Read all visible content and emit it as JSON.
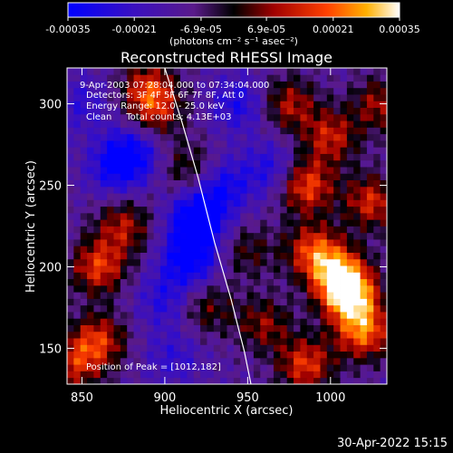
{
  "colorbar": {
    "tick_labels": [
      "-0.00035",
      "-0.00021",
      "-6.9e-05",
      "6.9e-05",
      "0.00021",
      "0.00035"
    ],
    "tick_values": [
      -0.00035,
      -0.00021,
      -6.9e-05,
      6.9e-05,
      0.00021,
      0.00035
    ],
    "range": [
      -0.00035,
      0.00035
    ],
    "unit_label": "(photons cm⁻² s⁻¹ asec⁻²)",
    "colors": [
      "#0000ff",
      "#5a1aa8",
      "#000000",
      "#b01010",
      "#ff4000",
      "#ffc000",
      "#ffffff"
    ]
  },
  "chart_data": {
    "type": "heatmap",
    "title": "Reconstructed RHESSI Image",
    "xlabel": "Heliocentric X (arcsec)",
    "ylabel": "Heliocentric Y (arcsec)",
    "xlim": [
      841,
      1034
    ],
    "ylim": [
      128,
      322
    ],
    "x_ticks": [
      850,
      900,
      950,
      1000
    ],
    "y_ticks": [
      150,
      200,
      250,
      300
    ],
    "grid": false,
    "annotations": [
      "9-Apr-2003 07:28:04.000 to 07:34:04.000",
      "Detectors: 3F 4F 5F 6F 7F 8F, Att 0",
      "Energy Range: 12.0 - 25.0 keV",
      "Clean     Total counts: 4.13E+03"
    ],
    "peak_label": "Position of Peak = [1012,182]",
    "peak": [
      1012,
      182
    ],
    "limb_curve": [
      [
        900,
        322
      ],
      [
        910,
        290
      ],
      [
        920,
        255
      ],
      [
        930,
        215
      ],
      [
        940,
        180
      ],
      [
        948,
        148
      ],
      [
        952,
        128
      ]
    ],
    "hotspots": [
      {
        "x": 1012,
        "y": 182,
        "v": 0.00035
      },
      {
        "x": 1005,
        "y": 195,
        "v": 0.0003
      },
      {
        "x": 990,
        "y": 210,
        "v": 0.00025
      },
      {
        "x": 1020,
        "y": 160,
        "v": 0.00028
      },
      {
        "x": 985,
        "y": 250,
        "v": 0.00027
      },
      {
        "x": 1000,
        "y": 280,
        "v": 0.0002
      },
      {
        "x": 1025,
        "y": 240,
        "v": 0.00022
      },
      {
        "x": 975,
        "y": 300,
        "v": 0.00018
      },
      {
        "x": 860,
        "y": 200,
        "v": 0.00024
      },
      {
        "x": 875,
        "y": 225,
        "v": 0.00018
      },
      {
        "x": 890,
        "y": 310,
        "v": 0.0002
      },
      {
        "x": 895,
        "y": 295,
        "v": 0.00015
      },
      {
        "x": 915,
        "y": 260,
        "v": 0.00012
      },
      {
        "x": 860,
        "y": 155,
        "v": 0.00022
      },
      {
        "x": 845,
        "y": 140,
        "v": 0.00018
      },
      {
        "x": 985,
        "y": 140,
        "v": 0.00024
      },
      {
        "x": 960,
        "y": 165,
        "v": 0.00015
      },
      {
        "x": 950,
        "y": 210,
        "v": 0.0001
      },
      {
        "x": 925,
        "y": 175,
        "v": 0.00012
      },
      {
        "x": 1030,
        "y": 300,
        "v": 0.00017
      }
    ],
    "coldspots": [
      {
        "x": 880,
        "y": 270,
        "v": -0.00025
      },
      {
        "x": 920,
        "y": 230,
        "v": -0.00035
      },
      {
        "x": 915,
        "y": 205,
        "v": -0.0003
      },
      {
        "x": 935,
        "y": 250,
        "v": -0.00022
      },
      {
        "x": 870,
        "y": 260,
        "v": -0.0002
      },
      {
        "x": 900,
        "y": 180,
        "v": -0.00018
      },
      {
        "x": 945,
        "y": 300,
        "v": -0.0002
      },
      {
        "x": 965,
        "y": 260,
        "v": -0.0002
      },
      {
        "x": 905,
        "y": 145,
        "v": -0.00015
      },
      {
        "x": 850,
        "y": 300,
        "v": -0.00015
      }
    ]
  },
  "footer": {
    "timestamp": "30-Apr-2022 15:15"
  }
}
